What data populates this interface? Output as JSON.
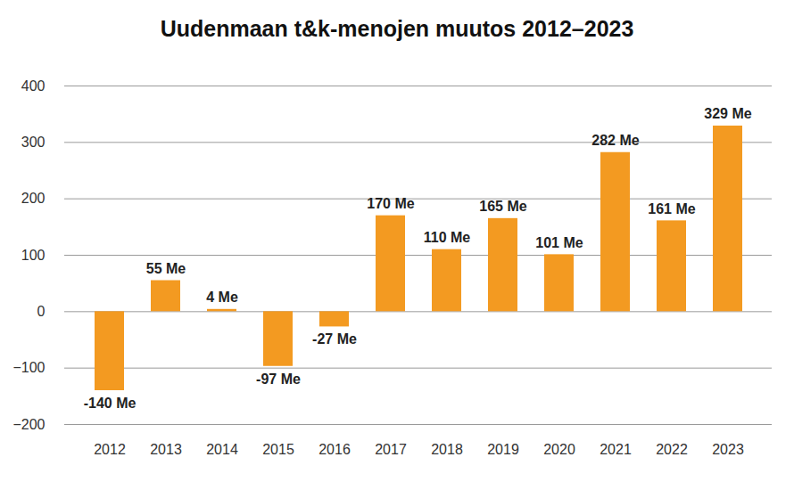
{
  "chart_data": {
    "type": "bar",
    "title": "Uudenmaan t&k-menojen muutos 2012–2023",
    "categories": [
      "2012",
      "2013",
      "2014",
      "2015",
      "2016",
      "2017",
      "2018",
      "2019",
      "2020",
      "2021",
      "2022",
      "2023"
    ],
    "values": [
      -140,
      55,
      4,
      -97,
      -27,
      170,
      110,
      165,
      101,
      282,
      161,
      329
    ],
    "value_labels": [
      "-140 Me",
      "55 Me",
      "4 Me",
      "-97 Me",
      "-27 Me",
      "170 Me",
      "110 Me",
      "165 Me",
      "101 Me",
      "282 Me",
      "161 Me",
      "329 Me"
    ],
    "color": "#f39a21",
    "ylim": [
      -200,
      400
    ],
    "yticks": [
      -200,
      -100,
      0,
      100,
      200,
      300,
      400
    ],
    "grid": true,
    "data_labels": true
  }
}
